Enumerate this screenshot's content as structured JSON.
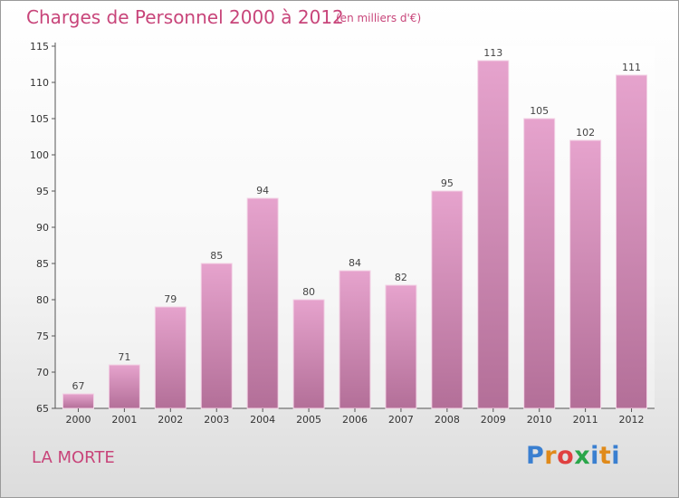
{
  "title": "Charges de Personnel 2000 à 2012",
  "subtitle": "(en milliers d'€)",
  "commune": "LA MORTE",
  "logo": {
    "letters": [
      "P",
      "r",
      "o",
      "x",
      "i",
      "t",
      "i"
    ],
    "colors": [
      "#3a7fd0",
      "#e08a1a",
      "#e04040",
      "#2aa64a",
      "#3a7fd0",
      "#e08a1a",
      "#3a7fd0"
    ]
  },
  "colors": {
    "bar_top": "#e6a3cd",
    "bar_bottom": "#b36f98",
    "text": "#c8457a",
    "grid": "#dddddd"
  },
  "chart_data": {
    "type": "bar",
    "categories": [
      "2000",
      "2001",
      "2002",
      "2003",
      "2004",
      "2005",
      "2006",
      "2007",
      "2008",
      "2009",
      "2010",
      "2011",
      "2012"
    ],
    "values": [
      67,
      71,
      79,
      85,
      94,
      80,
      84,
      82,
      95,
      113,
      105,
      102,
      111
    ],
    "title": "Charges de Personnel 2000 à 2012",
    "ylim": [
      65,
      115
    ],
    "yticks": [
      65,
      70,
      75,
      80,
      85,
      90,
      95,
      100,
      105,
      110,
      115
    ],
    "grid": false
  }
}
